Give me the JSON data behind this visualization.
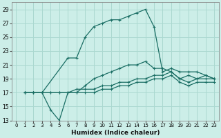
{
  "xlabel": "Humidex (Indice chaleur)",
  "bg_color": "#cceee8",
  "grid_color": "#aad8d0",
  "line_color": "#1a6e64",
  "ylim": [
    13,
    30
  ],
  "xlim": [
    -0.5,
    23.5
  ],
  "yticks": [
    13,
    15,
    17,
    19,
    21,
    23,
    25,
    27,
    29
  ],
  "xticks": [
    0,
    1,
    2,
    3,
    4,
    5,
    6,
    7,
    8,
    9,
    10,
    11,
    12,
    13,
    14,
    15,
    16,
    17,
    18,
    19,
    20,
    21,
    22,
    23
  ],
  "series": [
    {
      "x": [
        1,
        2,
        3,
        6,
        7,
        8,
        9,
        10,
        11,
        12,
        13,
        14,
        15,
        16,
        17,
        18,
        19,
        20,
        21,
        22,
        23
      ],
      "y": [
        17,
        17,
        17,
        22,
        22,
        25,
        26.5,
        27,
        27.5,
        27.5,
        28,
        28.5,
        29,
        26.5,
        20,
        20.5,
        20,
        20,
        20,
        19.5,
        19
      ]
    },
    {
      "x": [
        1,
        2,
        3,
        4,
        5,
        6,
        7,
        8,
        9,
        10,
        11,
        12,
        13,
        14,
        15,
        16,
        17,
        18,
        19,
        20,
        21,
        22,
        23
      ],
      "y": [
        17,
        17,
        17,
        14.5,
        13,
        17,
        17,
        18,
        19,
        19.5,
        20,
        20.5,
        21,
        21,
        21.5,
        20.5,
        20.5,
        20,
        19,
        19.5,
        19,
        19.5,
        19
      ]
    },
    {
      "x": [
        1,
        2,
        3,
        4,
        5,
        6,
        7,
        8,
        9,
        10,
        11,
        12,
        13,
        14,
        15,
        16,
        17,
        18,
        19,
        20,
        21,
        22,
        23
      ],
      "y": [
        17,
        17,
        17,
        17,
        17,
        17,
        17.5,
        17.5,
        17.5,
        18,
        18,
        18.5,
        18.5,
        19,
        19,
        19.5,
        19.5,
        20,
        19,
        18.5,
        19,
        19,
        19
      ]
    },
    {
      "x": [
        1,
        2,
        3,
        4,
        5,
        6,
        7,
        8,
        9,
        10,
        11,
        12,
        13,
        14,
        15,
        16,
        17,
        18,
        19,
        20,
        21,
        22,
        23
      ],
      "y": [
        17,
        17,
        17,
        17,
        17,
        17,
        17,
        17,
        17,
        17.5,
        17.5,
        18,
        18,
        18.5,
        18.5,
        19,
        19,
        19.5,
        18.5,
        18,
        18.5,
        18.5,
        18.5
      ]
    }
  ]
}
